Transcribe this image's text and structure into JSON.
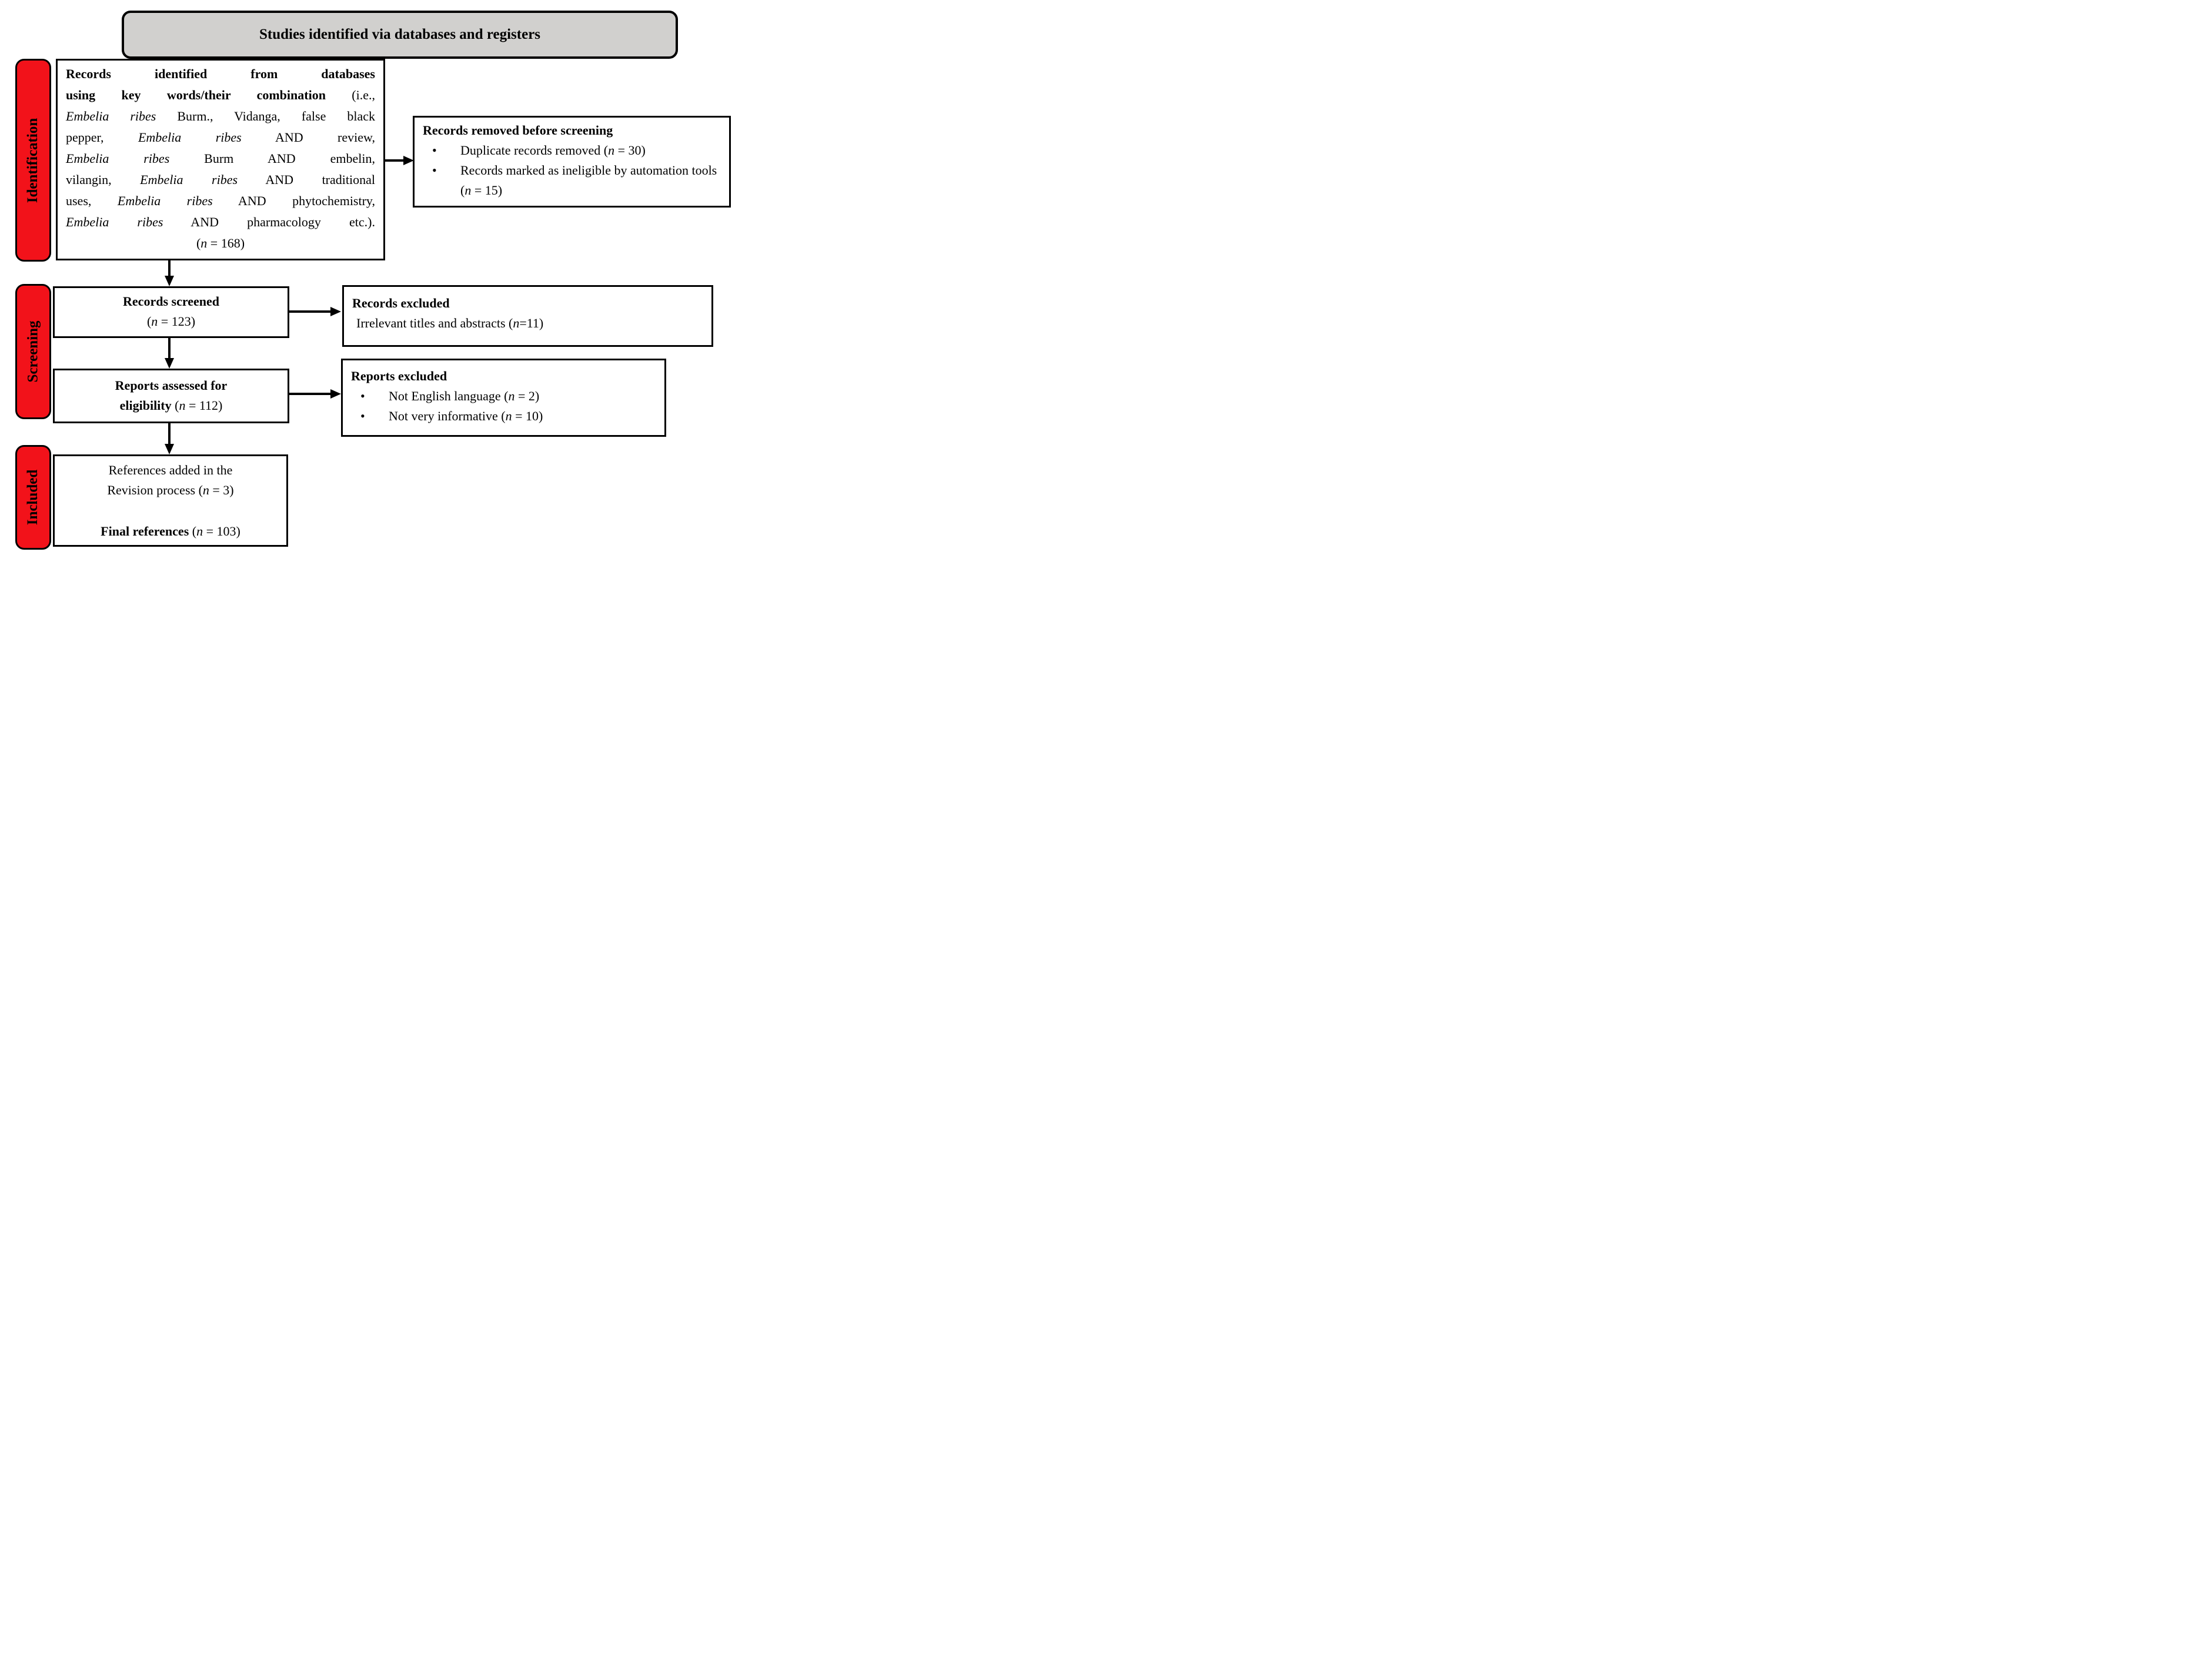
{
  "header": {
    "title": "Studies identified via databases and registers"
  },
  "stages": [
    {
      "label": "Identification"
    },
    {
      "label": "Screening"
    },
    {
      "label": "Included"
    }
  ],
  "colors": {
    "stage_tab_red": "#F2121A",
    "title_banner_grey": "#D1D0CE",
    "box_border_black": "#000000",
    "arrow_black": "#000000"
  },
  "boxes": {
    "identified": {
      "lines": [
        [
          {
            "t": "Records identified from databases",
            "b": true
          }
        ],
        [
          {
            "t": "using key words/their combination",
            "b": true
          },
          {
            "t": " (i.e.,"
          }
        ],
        [
          {
            "t": "Embelia ribes",
            "i": true
          },
          {
            "t": " Burm., Vidanga, false black"
          }
        ],
        [
          {
            "t": "pepper, "
          },
          {
            "t": "Embelia ribes",
            "i": true
          },
          {
            "t": " AND review,"
          }
        ],
        [
          {
            "t": "Embelia ribes",
            "i": true
          },
          {
            "t": " Burm AND embelin,"
          }
        ],
        [
          {
            "t": "vilangin, "
          },
          {
            "t": "Embelia ribes",
            "i": true
          },
          {
            "t": " AND traditional"
          }
        ],
        [
          {
            "t": "uses, "
          },
          {
            "t": "Embelia ribes",
            "i": true
          },
          {
            "t": " AND phytochemistry,"
          }
        ],
        [
          {
            "t": "Embelia ribes",
            "i": true
          },
          {
            "t": " AND pharmacology etc.)."
          }
        ]
      ],
      "count": [
        {
          "t": "("
        },
        {
          "t": "n",
          "i": true
        },
        {
          "t": " = 168)"
        }
      ]
    },
    "removed": {
      "title": [
        {
          "t": "Records removed before screening",
          "b": true
        }
      ],
      "bullets": [
        [
          {
            "t": "Duplicate records removed ("
          },
          {
            "t": "n",
            "i": true
          },
          {
            "t": " = 30)"
          }
        ],
        [
          {
            "t": "Records marked as ineligible by automation tools ("
          },
          {
            "t": "n",
            "i": true
          },
          {
            "t": " = 15)"
          }
        ]
      ]
    },
    "screened": {
      "line1": [
        {
          "t": "Records screened",
          "b": true
        }
      ],
      "line2": [
        {
          "t": "("
        },
        {
          "t": "n",
          "i": true
        },
        {
          "t": " = 123)"
        }
      ]
    },
    "records_excluded": {
      "title": [
        {
          "t": "Records excluded",
          "b": true
        }
      ],
      "reason": [
        {
          "t": "Irrelevant titles and abstracts ("
        },
        {
          "t": "n",
          "i": true
        },
        {
          "t": "=11)"
        }
      ]
    },
    "assessed": {
      "line1": [
        {
          "t": "Reports assessed for",
          "b": true
        }
      ],
      "line2": [
        {
          "t": "eligibility",
          "b": true
        },
        {
          "t": " ("
        },
        {
          "t": "n",
          "i": true
        },
        {
          "t": " = 112)"
        }
      ]
    },
    "reports_excluded": {
      "title": [
        {
          "t": "Reports excluded",
          "b": true
        }
      ],
      "bullets": [
        [
          {
            "t": "Not English language ("
          },
          {
            "t": "n",
            "i": true
          },
          {
            "t": " = 2)"
          }
        ],
        [
          {
            "t": "Not very informative ("
          },
          {
            "t": "n",
            "i": true
          },
          {
            "t": " = 10)"
          }
        ]
      ]
    },
    "included": {
      "line1": [
        {
          "t": "References added in the"
        }
      ],
      "line2": [
        {
          "t": "Revision process ("
        },
        {
          "t": "n",
          "i": true
        },
        {
          "t": " = 3)"
        }
      ],
      "final": [
        {
          "t": "Final references",
          "b": true
        },
        {
          "t": " ("
        },
        {
          "t": "n",
          "i": true
        },
        {
          "t": " = 103)"
        }
      ]
    }
  }
}
